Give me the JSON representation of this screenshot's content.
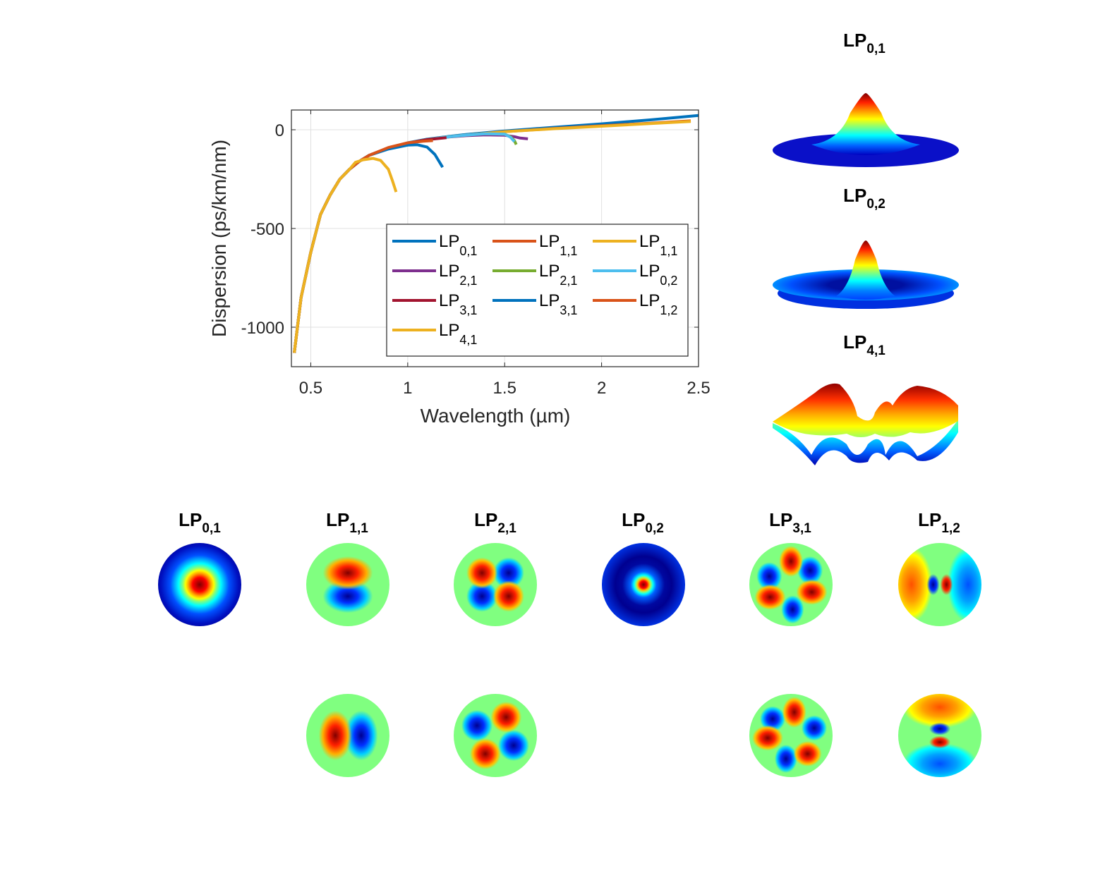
{
  "chart_data": [
    {
      "type": "line",
      "title": "",
      "xlabel": "Wavelength (µm)",
      "ylabel": "Dispersion (ps/km/nm)",
      "xlim": [
        0.4,
        2.5
      ],
      "ylim": [
        -1200,
        100
      ],
      "xticks": [
        0.5,
        1,
        1.5,
        2,
        2.5
      ],
      "xtick_labels": [
        "0.5",
        "1",
        "1.5",
        "2",
        "2.5"
      ],
      "yticks": [
        0,
        -500,
        -1000
      ],
      "ytick_labels": [
        "0",
        "-500",
        "-1000"
      ],
      "grid": true,
      "legend": {
        "placement": "bottom-right",
        "columns": 3
      },
      "series": [
        {
          "name": "LP",
          "sub": "0,1",
          "color": "#0072BD",
          "x": [
            0.415,
            0.45,
            0.5,
            0.55,
            0.6,
            0.65,
            0.7,
            0.75,
            0.8,
            0.9,
            1.0,
            1.1,
            1.2,
            1.3,
            1.5,
            1.75,
            2.0,
            2.25,
            2.5
          ],
          "y": [
            -1130,
            -850,
            -620,
            -430,
            -330,
            -250,
            -200,
            -160,
            -130,
            -92,
            -66,
            -48,
            -35,
            -24,
            -6,
            12,
            30,
            50,
            72
          ]
        },
        {
          "name": "LP",
          "sub": "1,1",
          "color": "#D95319",
          "x": [
            0.415,
            0.45,
            0.5,
            0.55,
            0.6,
            0.65,
            0.7,
            0.75,
            0.8,
            0.9,
            1.0,
            1.1,
            1.2,
            1.3,
            1.5,
            1.75,
            2.0,
            2.25,
            2.46
          ],
          "y": [
            -1130,
            -850,
            -620,
            -430,
            -330,
            -250,
            -200,
            -160,
            -130,
            -93,
            -68,
            -50,
            -37,
            -27,
            -10,
            6,
            20,
            33,
            45
          ]
        },
        {
          "name": "LP",
          "sub": "1,1",
          "color": "#EDB120",
          "x": [
            0.415,
            0.45,
            0.5,
            0.55,
            0.6,
            0.65,
            0.7,
            0.75,
            0.8,
            0.9,
            1.0,
            1.1,
            1.2,
            1.3,
            1.5,
            1.75,
            2.0,
            2.25,
            2.46
          ],
          "y": [
            -1130,
            -850,
            -620,
            -430,
            -330,
            -250,
            -200,
            -160,
            -130,
            -93,
            -68,
            -50,
            -37,
            -27,
            -10,
            5,
            18,
            31,
            42
          ]
        },
        {
          "name": "LP",
          "sub": "2,1",
          "color": "#7E2F8E",
          "x": [
            0.415,
            0.45,
            0.5,
            0.55,
            0.6,
            0.65,
            0.7,
            0.75,
            0.8,
            0.9,
            1.0,
            1.1,
            1.2,
            1.3,
            1.4,
            1.5,
            1.55,
            1.58,
            1.62
          ],
          "y": [
            -1130,
            -850,
            -620,
            -430,
            -330,
            -250,
            -200,
            -160,
            -130,
            -93,
            -68,
            -50,
            -38,
            -30,
            -26,
            -28,
            -35,
            -42,
            -46
          ]
        },
        {
          "name": "LP",
          "sub": "2,1",
          "color": "#77AC30",
          "x": [
            0.415,
            0.45,
            0.5,
            0.55,
            0.6,
            0.65,
            0.7,
            0.75,
            0.8,
            0.9,
            1.0,
            1.1,
            1.2,
            1.3,
            1.4,
            1.5,
            1.53,
            1.55,
            1.56
          ],
          "y": [
            -1130,
            -850,
            -620,
            -430,
            -330,
            -250,
            -200,
            -160,
            -130,
            -93,
            -68,
            -50,
            -37,
            -27,
            -20,
            -22,
            -35,
            -55,
            -75
          ]
        },
        {
          "name": "LP",
          "sub": "0,2",
          "color": "#4DBEEE",
          "x": [
            0.415,
            0.45,
            0.5,
            0.55,
            0.6,
            0.65,
            0.7,
            0.75,
            0.8,
            0.9,
            1.0,
            1.1,
            1.2,
            1.3,
            1.4,
            1.5,
            1.53,
            1.55
          ],
          "y": [
            -1130,
            -850,
            -620,
            -430,
            -330,
            -250,
            -200,
            -160,
            -130,
            -93,
            -68,
            -50,
            -37,
            -27,
            -20,
            -22,
            -38,
            -60
          ]
        },
        {
          "name": "LP",
          "sub": "3,1",
          "color": "#A2142F",
          "x": [
            0.415,
            0.45,
            0.5,
            0.55,
            0.6,
            0.65,
            0.7,
            0.75,
            0.8,
            0.9,
            1.0,
            1.1,
            1.2
          ],
          "y": [
            -1130,
            -850,
            -620,
            -430,
            -330,
            -250,
            -200,
            -160,
            -130,
            -93,
            -68,
            -50,
            -40
          ]
        },
        {
          "name": "LP",
          "sub": "3,1",
          "color": "#0072BD",
          "x": [
            0.415,
            0.45,
            0.5,
            0.55,
            0.6,
            0.65,
            0.7,
            0.75,
            0.8,
            0.9,
            1.0,
            1.05,
            1.1,
            1.14,
            1.18
          ],
          "y": [
            -1130,
            -850,
            -620,
            -430,
            -330,
            -250,
            -200,
            -160,
            -130,
            -98,
            -78,
            -76,
            -88,
            -125,
            -190
          ]
        },
        {
          "name": "LP",
          "sub": "1,2",
          "color": "#D95319",
          "x": [
            0.415,
            0.45,
            0.5,
            0.55,
            0.6,
            0.65,
            0.7,
            0.75,
            0.8,
            0.9,
            1.0,
            1.08,
            1.13
          ],
          "y": [
            -1130,
            -850,
            -620,
            -430,
            -330,
            -250,
            -200,
            -160,
            -130,
            -90,
            -66,
            -58,
            -55
          ]
        },
        {
          "name": "LP",
          "sub": "4,1",
          "color": "#EDB120",
          "x": [
            0.415,
            0.45,
            0.5,
            0.55,
            0.6,
            0.65,
            0.7,
            0.73,
            0.77,
            0.82,
            0.86,
            0.9,
            0.92,
            0.94
          ],
          "y": [
            -1130,
            -850,
            -620,
            -430,
            -330,
            -250,
            -200,
            -165,
            -152,
            -145,
            -155,
            -200,
            -255,
            -315
          ]
        }
      ]
    }
  ],
  "surface_plots": [
    {
      "title": "LP",
      "sub": "0,1",
      "shape": "single-peak"
    },
    {
      "title": "LP",
      "sub": "0,2",
      "shape": "peak-with-ring"
    },
    {
      "title": "LP",
      "sub": "4,1",
      "shape": "eight-lobe"
    }
  ],
  "mode_profiles": {
    "row1": [
      {
        "title": "LP",
        "sub": "0,1",
        "pattern": "gaussian"
      },
      {
        "title": "LP",
        "sub": "1,1",
        "pattern": "two-lobe-vertical"
      },
      {
        "title": "LP",
        "sub": "2,1",
        "pattern": "four-lobe"
      },
      {
        "title": "LP",
        "sub": "0,2",
        "pattern": "center-ring"
      },
      {
        "title": "LP",
        "sub": "3,1",
        "pattern": "six-lobe"
      },
      {
        "title": "LP",
        "sub": "1,2",
        "pattern": "two-lobe-ring-horizontal"
      }
    ],
    "row2": [
      {
        "col": 1,
        "pattern": "two-lobe-horizontal"
      },
      {
        "col": 2,
        "pattern": "four-lobe-rotated"
      },
      {
        "col": 4,
        "pattern": "six-lobe-rotated"
      },
      {
        "col": 5,
        "pattern": "two-lobe-ring-vertical"
      }
    ]
  },
  "colormap": {
    "dark_blue": "#00008F",
    "blue": "#0020FF",
    "cyan": "#00FFFF",
    "green": "#80FF80",
    "yellow": "#FFFF00",
    "red": "#FF0000",
    "dark_red": "#800000"
  }
}
